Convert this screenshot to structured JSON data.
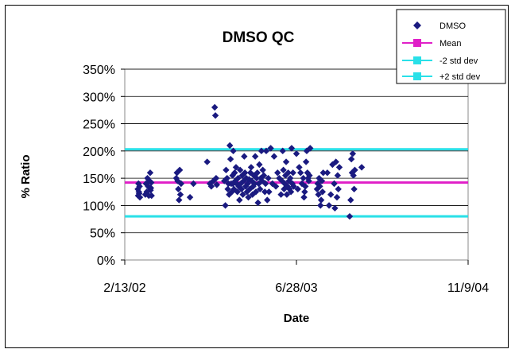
{
  "chart_data": {
    "type": "scatter",
    "title": "DMSO QC",
    "xlabel": "Date",
    "ylabel": "% Ratio",
    "x_ticks": [
      "2/13/02",
      "6/28/03",
      "11/9/04"
    ],
    "x_range": [
      "2/13/02",
      "11/9/04"
    ],
    "y_ticks": [
      "0%",
      "50%",
      "100%",
      "150%",
      "200%",
      "250%",
      "300%",
      "350%"
    ],
    "ylim": [
      0,
      350
    ],
    "grid": "horizontal",
    "legend_position": "top-right",
    "legend": [
      "DMSO",
      "Mean",
      "-2 std dev",
      "+2 std dev"
    ],
    "colors": {
      "DMSO": "#1a1a80",
      "Mean": "#e020c8",
      "-2 std dev": "#29e0e8",
      "+2 std dev": "#29e0e8"
    },
    "series": [
      {
        "name": "DMSO",
        "type": "scatter",
        "x_days": [
          38,
          39,
          40,
          41,
          42,
          43,
          44,
          60,
          62,
          64,
          66,
          68,
          70,
          72,
          74,
          75,
          76,
          77,
          78,
          150,
          152,
          154,
          156,
          158,
          160,
          162,
          164,
          190,
          200,
          240,
          248,
          252,
          258,
          262,
          264,
          266,
          268,
          290,
          293,
          295,
          298,
          300,
          302,
          304,
          306,
          308,
          310,
          312,
          314,
          315,
          316,
          318,
          320,
          322,
          324,
          326,
          328,
          330,
          332,
          334,
          336,
          338,
          340,
          342,
          344,
          346,
          348,
          350,
          352,
          354,
          356,
          358,
          360,
          362,
          364,
          366,
          368,
          370,
          372,
          374,
          376,
          378,
          380,
          382,
          384,
          386,
          388,
          390,
          392,
          394,
          396,
          398,
          400,
          402,
          405,
          408,
          410,
          412,
          415,
          418,
          420,
          425,
          430,
          435,
          440,
          445,
          450,
          455,
          458,
          460,
          462,
          464,
          466,
          468,
          470,
          472,
          474,
          476,
          478,
          480,
          482,
          484,
          486,
          488,
          490,
          492,
          500,
          504,
          508,
          512,
          516,
          520,
          522,
          524,
          526,
          528,
          530,
          532,
          534,
          536,
          538,
          540,
          560,
          562,
          564,
          566,
          568,
          570,
          572,
          574,
          576,
          578,
          590,
          595,
          600,
          605,
          610,
          612,
          615,
          618,
          620,
          622,
          625,
          655,
          658,
          660,
          662,
          664,
          666,
          668,
          670,
          690
        ],
        "y": [
          130,
          118,
          140,
          125,
          122,
          135,
          115,
          120,
          140,
          125,
          150,
          135,
          118,
          145,
          160,
          128,
          132,
          142,
          118,
          150,
          160,
          145,
          130,
          110,
          165,
          120,
          140,
          115,
          140,
          180,
          140,
          135,
          145,
          280,
          265,
          150,
          138,
          145,
          100,
          165,
          150,
          130,
          140,
          120,
          210,
          185,
          140,
          125,
          155,
          140,
          200,
          130,
          160,
          145,
          170,
          140,
          125,
          150,
          135,
          110,
          165,
          140,
          130,
          155,
          120,
          145,
          190,
          160,
          135,
          150,
          125,
          140,
          115,
          148,
          130,
          160,
          170,
          145,
          120,
          135,
          155,
          140,
          190,
          125,
          150,
          160,
          105,
          140,
          175,
          130,
          150,
          200,
          145,
          165,
          155,
          125,
          140,
          200,
          110,
          150,
          125,
          205,
          140,
          190,
          135,
          160,
          150,
          120,
          145,
          200,
          165,
          130,
          140,
          155,
          180,
          120,
          135,
          160,
          145,
          130,
          150,
          125,
          205,
          140,
          160,
          135,
          195,
          130,
          170,
          160,
          140,
          150,
          115,
          125,
          135,
          180,
          200,
          160,
          150,
          145,
          155,
          205,
          130,
          140,
          120,
          150,
          135,
          100,
          110,
          145,
          125,
          160,
          160,
          100,
          120,
          175,
          140,
          95,
          180,
          115,
          155,
          130,
          170,
          80,
          110,
          185,
          160,
          195,
          155,
          130,
          165,
          170
        ]
      },
      {
        "name": "Mean",
        "type": "line",
        "value": 142
      },
      {
        "name": "-2 std dev",
        "type": "line",
        "value": 80
      },
      {
        "name": "+2 std dev",
        "type": "line",
        "value": 203
      }
    ]
  }
}
